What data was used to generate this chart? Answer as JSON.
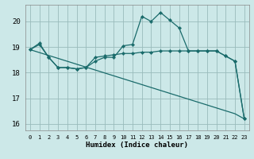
{
  "background_color": "#cce8e8",
  "grid_color": "#99bbbb",
  "line_color": "#1a6b6b",
  "xlabel": "Humidex (Indice chaleur)",
  "xlim": [
    -0.5,
    23.5
  ],
  "ylim": [
    15.75,
    20.65
  ],
  "yticks": [
    16,
    17,
    18,
    19,
    20
  ],
  "xticks": [
    0,
    1,
    2,
    3,
    4,
    5,
    6,
    7,
    8,
    9,
    10,
    11,
    12,
    13,
    14,
    15,
    16,
    17,
    18,
    19,
    20,
    21,
    22,
    23
  ],
  "line1_x": [
    0,
    1,
    2,
    3,
    4,
    5,
    6,
    7,
    8,
    9,
    10,
    11,
    12,
    13,
    14,
    15,
    16,
    17,
    18,
    19,
    20,
    21,
    22,
    23
  ],
  "line1_y": [
    18.9,
    19.1,
    18.6,
    18.2,
    18.2,
    18.15,
    18.2,
    18.45,
    18.6,
    18.6,
    19.05,
    19.1,
    20.2,
    20.0,
    20.35,
    20.05,
    19.75,
    18.85,
    18.85,
    18.85,
    18.85,
    18.65,
    18.45,
    16.2
  ],
  "line2_x": [
    0,
    1,
    2,
    3,
    4,
    5,
    6,
    7,
    8,
    9,
    10,
    11,
    12,
    13,
    14,
    15,
    16,
    17,
    18,
    19,
    20,
    21,
    22,
    23
  ],
  "line2_y": [
    18.9,
    19.15,
    18.6,
    18.2,
    18.2,
    18.15,
    18.2,
    18.6,
    18.65,
    18.7,
    18.75,
    18.75,
    18.8,
    18.8,
    18.85,
    18.85,
    18.85,
    18.85,
    18.85,
    18.85,
    18.85,
    18.65,
    18.45,
    16.2
  ],
  "line3_x": [
    0,
    22,
    23
  ],
  "line3_y": [
    18.9,
    16.4,
    16.2
  ]
}
